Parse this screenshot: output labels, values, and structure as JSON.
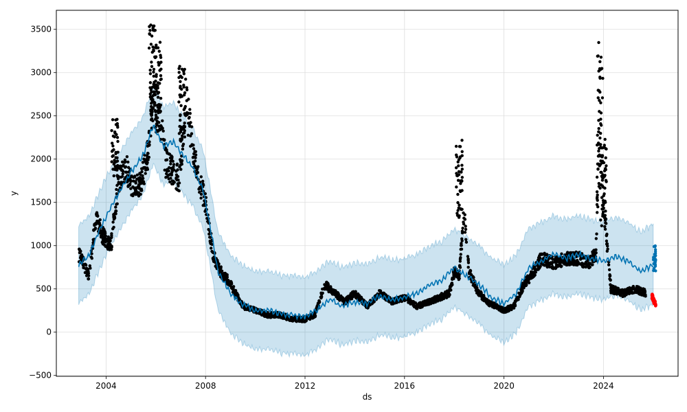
{
  "chart_data": {
    "type": "line",
    "title": "",
    "xlabel": "ds",
    "ylabel": "y",
    "xlim": [
      2002.0,
      2027.0
    ],
    "ylim": [
      -510,
      3720
    ],
    "grid": true,
    "x_ticks": [
      2004,
      2008,
      2012,
      2016,
      2020,
      2024
    ],
    "x_tick_labels": [
      "2004",
      "2008",
      "2012",
      "2016",
      "2020",
      "2024"
    ],
    "y_ticks": [
      -500,
      0,
      500,
      1000,
      1500,
      2000,
      2500,
      3000,
      3500
    ],
    "y_tick_labels": [
      "−500",
      "0",
      "500",
      "1000",
      "1500",
      "2000",
      "2500",
      "3000",
      "3500"
    ],
    "colors": {
      "forecast_line": "#0072B2",
      "uncertainty_band": "#0072B2",
      "observed_points": "#000000",
      "recent_points": "#ff0000",
      "grid": "#dddddd"
    },
    "forecast": {
      "x": [
        2002.9,
        2003.3,
        2003.7,
        2004.1,
        2004.5,
        2005.0,
        2005.5,
        2005.9,
        2006.3,
        2006.7,
        2007.1,
        2007.5,
        2007.9,
        2008.2,
        2008.5,
        2009.0,
        2009.5,
        2010.0,
        2010.5,
        2011.0,
        2011.5,
        2012.0,
        2012.5,
        2013.0,
        2013.5,
        2014.0,
        2014.5,
        2015.0,
        2015.5,
        2016.0,
        2016.5,
        2017.0,
        2017.5,
        2018.0,
        2018.5,
        2019.0,
        2019.5,
        2020.0,
        2020.5,
        2021.0,
        2021.5,
        2022.0,
        2022.5,
        2023.0,
        2023.5,
        2024.0,
        2024.5,
        2025.0,
        2025.5,
        2026.0
      ],
      "y": [
        780,
        880,
        1150,
        1400,
        1600,
        1850,
        2050,
        2400,
        2150,
        2200,
        2050,
        1900,
        1650,
        1200,
        700,
        450,
        320,
        250,
        260,
        210,
        200,
        180,
        260,
        380,
        300,
        350,
        330,
        420,
        380,
        400,
        450,
        550,
        600,
        750,
        650,
        550,
        400,
        330,
        450,
        750,
        820,
        900,
        850,
        900,
        850,
        820,
        880,
        820,
        700,
        780
      ],
      "upper": [
        1230,
        1330,
        1600,
        1850,
        2050,
        2300,
        2500,
        2850,
        2600,
        2650,
        2500,
        2350,
        2100,
        1650,
        1150,
        900,
        770,
        700,
        710,
        660,
        650,
        630,
        710,
        830,
        750,
        800,
        780,
        870,
        830,
        850,
        900,
        1000,
        1050,
        1200,
        1100,
        1000,
        850,
        780,
        900,
        1200,
        1270,
        1350,
        1300,
        1350,
        1300,
        1270,
        1330,
        1270,
        1150,
        1250
      ],
      "lower": [
        330,
        430,
        700,
        950,
        1150,
        1400,
        1600,
        1950,
        1700,
        1750,
        1600,
        1450,
        1200,
        750,
        250,
        0,
        -130,
        -200,
        -190,
        -240,
        -250,
        -270,
        -190,
        -70,
        -150,
        -100,
        -120,
        -30,
        -70,
        -50,
        0,
        100,
        150,
        300,
        200,
        100,
        -50,
        -120,
        0,
        300,
        370,
        450,
        400,
        450,
        400,
        370,
        430,
        370,
        250,
        320
      ]
    },
    "observed_anchor_points": {
      "x": [
        2002.9,
        2003.1,
        2003.3,
        2003.6,
        2003.9,
        2004.2,
        2004.5,
        2004.8,
        2005.1,
        2005.4,
        2005.7,
        2005.9,
        2006.1,
        2006.4,
        2006.7,
        2006.95,
        2007.2,
        2007.5,
        2007.8,
        2008.0,
        2008.3,
        2008.6,
        2008.9,
        2009.1,
        2009.5,
        2010.0,
        2010.5,
        2011.0,
        2011.5,
        2012.0,
        2012.4,
        2012.8,
        2013.2,
        2013.6,
        2014.0,
        2014.5,
        2015.0,
        2015.5,
        2016.0,
        2016.5,
        2017.0,
        2017.4,
        2017.8,
        2018.0,
        2018.2,
        2018.4,
        2018.6,
        2018.9,
        2019.3,
        2019.7,
        2020.0,
        2020.4,
        2020.8,
        2021.1,
        2021.5,
        2022.0,
        2022.5,
        2023.0,
        2023.4,
        2023.7,
        2023.85,
        2024.0,
        2024.1,
        2024.3,
        2024.8,
        2025.3,
        2025.7
      ],
      "y": [
        900,
        800,
        650,
        1300,
        1100,
        1000,
        1750,
        1900,
        1650,
        1700,
        2100,
        2700,
        2650,
        1950,
        1850,
        1750,
        2700,
        2100,
        1700,
        1500,
        900,
        700,
        600,
        500,
        300,
        250,
        200,
        200,
        150,
        150,
        200,
        550,
        450,
        350,
        450,
        300,
        450,
        350,
        400,
        300,
        350,
        400,
        450,
        700,
        650,
        1400,
        700,
        500,
        350,
        300,
        250,
        300,
        550,
        650,
        850,
        800,
        850,
        850,
        800,
        900,
        3000,
        1500,
        1200,
        500,
        450,
        500,
        450
      ]
    },
    "recent_anchor_points": {
      "x": [
        2025.95,
        2026.0,
        2026.05,
        2026.1
      ],
      "y": [
        420,
        380,
        350,
        320
      ]
    }
  }
}
